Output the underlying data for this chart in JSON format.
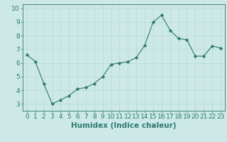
{
  "x": [
    0,
    1,
    2,
    3,
    4,
    5,
    6,
    7,
    8,
    9,
    10,
    11,
    12,
    13,
    14,
    15,
    16,
    17,
    18,
    19,
    20,
    21,
    22,
    23
  ],
  "y": [
    6.6,
    6.1,
    4.5,
    3.0,
    3.3,
    3.6,
    4.1,
    4.2,
    4.5,
    5.0,
    5.9,
    6.0,
    6.1,
    6.4,
    7.3,
    9.0,
    9.5,
    8.4,
    7.8,
    7.7,
    6.5,
    6.5,
    7.25,
    7.1
  ],
  "line_color": "#2d7a6e",
  "marker_color": "#2d7a6e",
  "bg_color": "#cce9e7",
  "grid_color": "#b8d8d5",
  "tick_color": "#2d7a6e",
  "xlabel": "Humidex (Indice chaleur)",
  "ylim": [
    2.5,
    10.3
  ],
  "xlim": [
    -0.5,
    23.5
  ],
  "yticks": [
    3,
    4,
    5,
    6,
    7,
    8,
    9,
    10
  ],
  "xticks": [
    0,
    1,
    2,
    3,
    4,
    5,
    6,
    7,
    8,
    9,
    10,
    11,
    12,
    13,
    14,
    15,
    16,
    17,
    18,
    19,
    20,
    21,
    22,
    23
  ],
  "font_size": 6.5,
  "xlabel_font_size": 7.5
}
